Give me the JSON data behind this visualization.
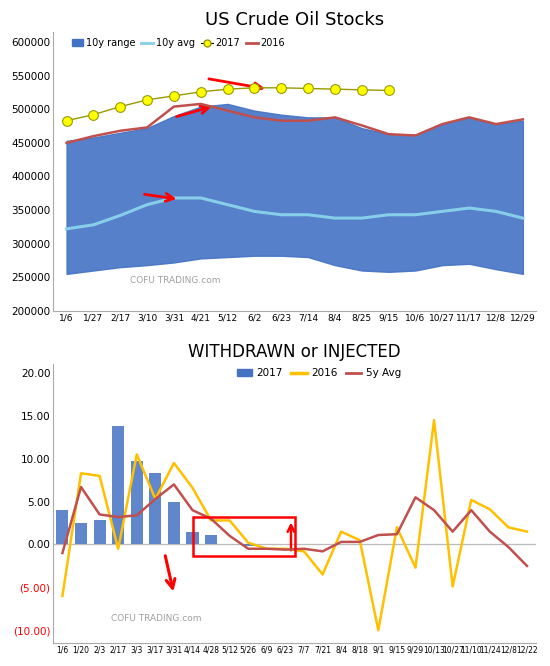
{
  "chart1": {
    "title": "US Crude Oil Stocks",
    "xlabels": [
      "1/6",
      "1/27",
      "2/17",
      "3/10",
      "3/31",
      "4/21",
      "5/12",
      "6/2",
      "6/23",
      "7/14",
      "8/4",
      "8/25",
      "9/15",
      "10/6",
      "10/27",
      "11/17",
      "12/8",
      "12/29"
    ],
    "ylim": [
      200000,
      615000
    ],
    "yticks": [
      200000,
      250000,
      300000,
      350000,
      400000,
      450000,
      500000,
      550000,
      600000
    ],
    "range_lower": [
      255000,
      260000,
      265000,
      268000,
      272000,
      278000,
      280000,
      282000,
      282000,
      280000,
      268000,
      260000,
      258000,
      260000,
      268000,
      270000,
      262000,
      255000
    ],
    "range_upper": [
      453000,
      458000,
      465000,
      472000,
      490000,
      504000,
      508000,
      498000,
      492000,
      488000,
      488000,
      472000,
      463000,
      462000,
      478000,
      488000,
      478000,
      483000
    ],
    "avg_line": [
      322000,
      328000,
      342000,
      358000,
      368000,
      368000,
      358000,
      348000,
      343000,
      343000,
      338000,
      338000,
      343000,
      343000,
      348000,
      353000,
      348000,
      338000
    ],
    "line_2016": [
      450000,
      460000,
      468000,
      473000,
      504000,
      508000,
      498000,
      488000,
      483000,
      483000,
      488000,
      476000,
      463000,
      461000,
      478000,
      488000,
      478000,
      485000
    ],
    "dots_2017_x": [
      0,
      1,
      2,
      3,
      4,
      5,
      6,
      7,
      8,
      9,
      10,
      11,
      12
    ],
    "dots_2017_y": [
      483000,
      492000,
      504000,
      514000,
      520000,
      526000,
      530000,
      532000,
      532000,
      531000,
      530000,
      529000,
      528000
    ],
    "range_color": "#4472C4",
    "avg_color": "#87CEEB",
    "line2016_color": "#C0504D",
    "dots2017_color": "#FFFF00",
    "dots2017_edge": "#999900",
    "bg_color": "#FFFFFF",
    "watermark": "COFU TRADING.com"
  },
  "chart2": {
    "title": "WITHDRAWN or INJECTED",
    "xlabels": [
      "1/6",
      "1/20",
      "2/3",
      "2/17",
      "3/3",
      "3/17",
      "3/31",
      "4/14",
      "4/28",
      "5/12",
      "5/26",
      "6/9",
      "6/23",
      "7/7",
      "7/21",
      "8/4",
      "8/18",
      "9/1",
      "9/15",
      "9/29",
      "10/13",
      "10/27",
      "11/10",
      "11/24",
      "12/8",
      "12/22"
    ],
    "ylim": [
      -11.5,
      21
    ],
    "yticks": [
      -10,
      -5,
      0,
      5,
      10,
      15,
      20
    ],
    "ytick_labels": [
      "(10.00)",
      "(5.00)",
      "0.00",
      "5.00",
      "10.00",
      "15.00",
      "20.00"
    ],
    "bars_2017": [
      4.0,
      2.5,
      2.8,
      13.8,
      9.7,
      8.3,
      5.0,
      1.4,
      1.1,
      0.1,
      -0.2,
      0.0,
      0.0,
      0.0,
      0.0,
      0.0,
      0.0,
      0.0,
      0.0,
      0.0,
      0.0,
      0.0,
      0.0,
      0.0,
      0.0,
      0.0
    ],
    "line_2016": [
      -6.0,
      8.3,
      8.0,
      -0.5,
      10.5,
      5.3,
      9.5,
      6.6,
      2.8,
      2.8,
      0.2,
      -0.5,
      -0.5,
      -0.8,
      -3.5,
      1.5,
      0.5,
      -10.0,
      2.0,
      -2.7,
      14.5,
      -4.9,
      5.2,
      4.1,
      2.0,
      1.5
    ],
    "line_5y": [
      -1.0,
      6.7,
      3.5,
      3.2,
      3.4,
      5.3,
      7.0,
      4.0,
      3.0,
      1.0,
      -0.5,
      -0.5,
      -0.6,
      -0.5,
      -0.8,
      0.3,
      0.3,
      1.1,
      1.2,
      5.5,
      4.0,
      1.5,
      4.0,
      1.5,
      -0.3,
      -2.5
    ],
    "bar_color": "#4472C4",
    "line2016_color": "#FFC000",
    "line5y_color": "#C0504D",
    "bg_color": "#FFFFFF",
    "watermark": "COFU TRADING.com"
  }
}
